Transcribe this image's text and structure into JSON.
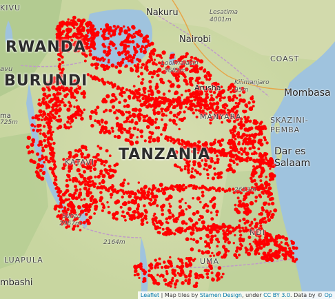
{
  "map": {
    "labels": {
      "nakuru": "Nakuru",
      "lesatima": "Lesatima",
      "lesatima_elev": "4001m",
      "nairobi": "Nairobi",
      "rwanda": "RWANDA",
      "kivu": "KIVU",
      "avu": "avu",
      "burundi": "BURUNDI",
      "loolmalasin": "Loolmalasin",
      "loolmalasin_elev": "3682m",
      "kilimanjaro": "Kilimanjaro",
      "kilimanjaro_elev": "95m",
      "arusha": "Arusha",
      "coast": "COAST",
      "mombasa": "Mombasa",
      "manyara": "MANYARA",
      "kazini_pemba": "SKAZINI-\nPEMBA",
      "tanzania": "TANZANIA",
      "dar": "Dar es\nSalaam",
      "katavi": "KATAVI",
      "ma": "ma",
      "m725": "725m",
      "m2653": "2653m",
      "sunzu": "Sunzu",
      "sunzu_elev": "2067m",
      "m2164": "2164m",
      "ndi": "NDI",
      "uma": "UMA",
      "luapula": "LUAPULA",
      "mbashi": "mbashi"
    },
    "colors": {
      "marker": "#ff0000",
      "water": "#9fc3de",
      "land": "#c8d6a0"
    }
  },
  "attribution": {
    "leaflet": "Leaflet",
    "sep1": " | Map tiles by ",
    "stamen": "Stamen Design",
    "sep2": ", under ",
    "cc": "CC BY 3.0",
    "sep3": ". Data by © ",
    "osm": "Op"
  }
}
